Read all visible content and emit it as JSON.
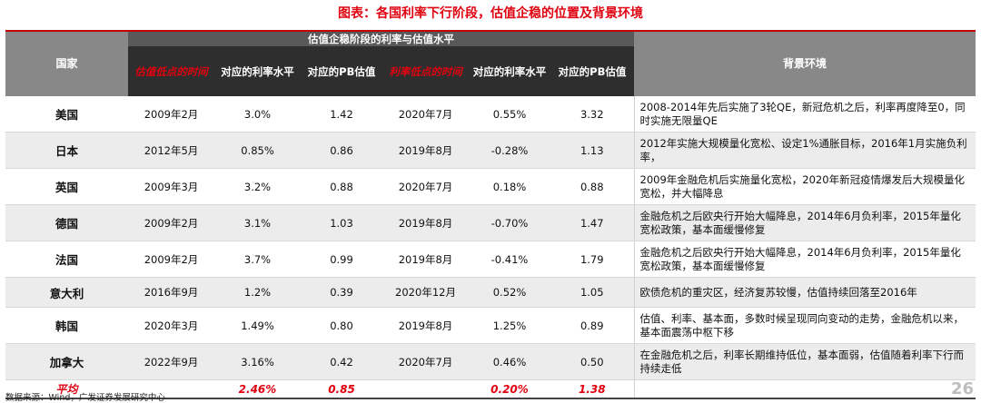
{
  "title": "图表：各国利率下行阶段，估值企稳的位置及背景环境",
  "colors": {
    "title": "#e0000f",
    "rule": "#c00000",
    "accent_red": "#e0000f",
    "header_dark": "#2e2e2e",
    "header_group": "#595959",
    "header_gray": "#888888"
  },
  "headers": {
    "country": "国家",
    "group": "估值企稳阶段的利率与估值水平",
    "val_low_time": "估值低点的时间",
    "val_low_rate": "对应的利率水平",
    "val_low_pb": "对应的PB估值",
    "rate_low_time": "利率低点的时间",
    "rate_low_rate": "对应的利率水平",
    "rate_low_pb": "对应的PB估值",
    "background": "背景环境"
  },
  "rows": [
    {
      "country": "美国",
      "val_low_time": "2009年2月",
      "val_low_rate": "3.0%",
      "val_low_pb": "1.42",
      "rate_low_time": "2020年7月",
      "rate_low_rate": "0.55%",
      "rate_low_pb": "3.32",
      "background": "2008-2014年先后实施了3轮QE，新冠危机之后，利率再度降至0，同时实施无限量QE"
    },
    {
      "country": "日本",
      "val_low_time": "2012年5月",
      "val_low_rate": "0.85%",
      "val_low_pb": "0.86",
      "rate_low_time": "2019年8月",
      "rate_low_rate": "-0.28%",
      "rate_low_pb": "1.13",
      "background": "2012年实施大规模量化宽松、设定1%通胀目标，2016年1月实施负利率，"
    },
    {
      "country": "英国",
      "val_low_time": "2009年3月",
      "val_low_rate": "3.2%",
      "val_low_pb": "0.88",
      "rate_low_time": "2020年7月",
      "rate_low_rate": "0.18%",
      "rate_low_pb": "0.88",
      "background": "2009年金融危机后实施量化宽松，2020年新冠疫情爆发后大规模量化宽松，并大幅降息"
    },
    {
      "country": "德国",
      "val_low_time": "2009年2月",
      "val_low_rate": "3.1%",
      "val_low_pb": "1.03",
      "rate_low_time": "2019年8月",
      "rate_low_rate": "-0.70%",
      "rate_low_pb": "1.47",
      "background": "金融危机之后欧央行开始大幅降息，2014年6月负利率，2015年量化宽松政策，基本面缓慢修复"
    },
    {
      "country": "法国",
      "val_low_time": "2009年2月",
      "val_low_rate": "3.7%",
      "val_low_pb": "0.99",
      "rate_low_time": "2019年8月",
      "rate_low_rate": "-0.41%",
      "rate_low_pb": "1.79",
      "background": "金融危机之后欧央行开始大幅降息，2014年6月负利率，2015年量化宽松政策，基本面缓慢修复"
    },
    {
      "country": "意大利",
      "val_low_time": "2016年9月",
      "val_low_rate": "1.2%",
      "val_low_pb": "0.39",
      "rate_low_time": "2020年12月",
      "rate_low_rate": "0.52%",
      "rate_low_pb": "1.05",
      "background": "欧债危机的重灾区，经济复苏较慢，估值持续回落至2016年"
    },
    {
      "country": "韩国",
      "val_low_time": "2020年3月",
      "val_low_rate": "1.49%",
      "val_low_pb": "0.80",
      "rate_low_time": "2019年8月",
      "rate_low_rate": "1.25%",
      "rate_low_pb": "0.89",
      "background": "估值、利率、基本面，多数时候呈现同向变动的走势，金融危机以来，基本面震荡中枢下移"
    },
    {
      "country": "加拿大",
      "val_low_time": "2022年9月",
      "val_low_rate": "3.16%",
      "val_low_pb": "0.42",
      "rate_low_time": "2020年7月",
      "rate_low_rate": "0.46%",
      "rate_low_pb": "0.50",
      "background": "在金融危机之后，利率长期维持低位，基本面弱，估值随着利率下行而持续走低"
    }
  ],
  "average": {
    "label": "平均",
    "val_low_rate": "2.46%",
    "val_low_pb": "0.85",
    "rate_low_rate": "0.20%",
    "rate_low_pb": "1.38"
  },
  "footer": {
    "source": "数据来源：Wind，广发证券发展研究中心",
    "page": "26"
  }
}
